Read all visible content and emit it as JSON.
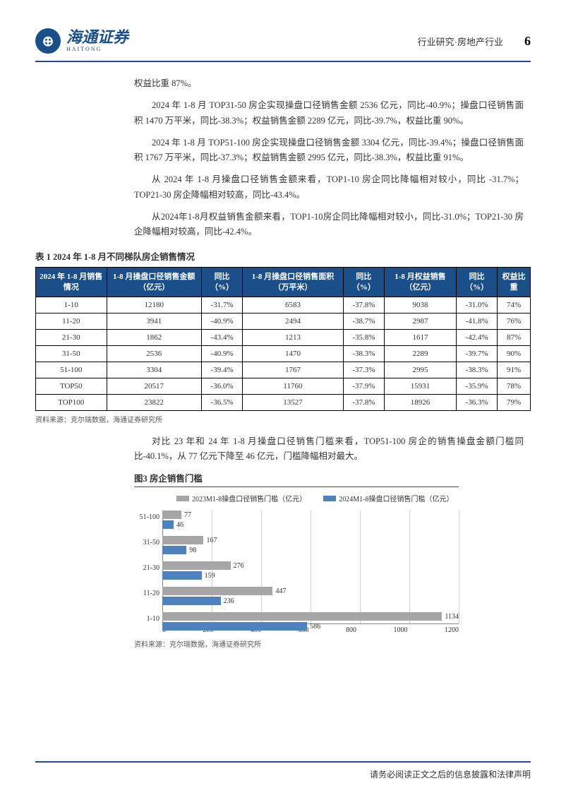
{
  "header": {
    "logo_cn": "海通证券",
    "logo_en": "HAITONG",
    "category": "行业研究·房地产行业",
    "page_number": "6"
  },
  "paragraphs": {
    "p0": "权益比重 87%。",
    "p1": "2024 年 1-8 月 TOP31-50 房企实现操盘口径销售金额 2536 亿元，同比-40.9%；操盘口径销售面积 1470 万平米，同比-38.3%；权益销售金额 2289 亿元，同比-39.7%，权益比重 90%。",
    "p2": "2024 年 1-8 月 TOP51-100 房企实现操盘口径销售金额 3304 亿元，同比-39.4%；操盘口径销售面积 1767 万平米，同比-37.3%；权益销售金额 2995 亿元，同比-38.3%，权益比重 91%。",
    "p3": "从 2024 年 1-8 月操盘口径销售金额来看，TOP1-10 房企同比降幅相对较小，同比 -31.7%；TOP21-30 房企降幅相对较高，同比-43.4%。",
    "p4": "从2024年1-8月权益销售金额来看，TOP1-10房企同比降幅相对较小，同比-31.0%；TOP21-30 房企降幅相对较高，同比-42.4%。",
    "p5": "对比 23 年和 24 年 1-8 月操盘口径销售门槛来看，TOP51-100 房企的销售操盘金额门槛同比-40.1%，从 77 亿元下降至 46 亿元，门槛降幅相对最大。"
  },
  "table": {
    "title": "表 1   2024 年 1-8 月不同梯队房企销售情况",
    "columns": [
      "2024 年 1-8 月销售情况",
      "1-8 月操盘口径销售金额（亿元）",
      "同比（%）",
      "1-8 月操盘口径销售面积（万平米）",
      "同比（%）",
      "1-8 月权益销售（亿元）",
      "同比（%）",
      "权益比重"
    ],
    "rows": [
      [
        "1-10",
        "12180",
        "-31.7%",
        "6583",
        "-37.8%",
        "9038",
        "-31.0%",
        "74%"
      ],
      [
        "11-20",
        "3941",
        "-40.9%",
        "2494",
        "-38.7%",
        "2987",
        "-41.8%",
        "76%"
      ],
      [
        "21-30",
        "1862",
        "-43.4%",
        "1213",
        "-35.8%",
        "1617",
        "-42.4%",
        "87%"
      ],
      [
        "31-50",
        "2536",
        "-40.9%",
        "1470",
        "-38.3%",
        "2289",
        "-39.7%",
        "90%"
      ],
      [
        "51-100",
        "3304",
        "-39.4%",
        "1767",
        "-37.3%",
        "2995",
        "-38.3%",
        "91%"
      ],
      [
        "TOP50",
        "20517",
        "-36.0%",
        "11760",
        "-37.9%",
        "15931",
        "-35.9%",
        "78%"
      ],
      [
        "TOP100",
        "23822",
        "-36.5%",
        "13527",
        "-37.8%",
        "18926",
        "-36.3%",
        "79%"
      ]
    ],
    "source": "资料来源：克尔瑞数据，海通证券研究所",
    "header_bg": "#1a4f8a",
    "header_text_color": "#ffffff",
    "border_color": "#000000"
  },
  "chart": {
    "title": "图3  房企销售门槛",
    "type": "bar-horizontal-grouped",
    "legend": [
      {
        "label": "2023M1-8操盘口径销售门槛（亿元）",
        "color": "#a6a6a6"
      },
      {
        "label": "2024M1-8操盘口径销售门槛（亿元）",
        "color": "#4f81bd"
      }
    ],
    "categories": [
      "51-100",
      "31-50",
      "21-30",
      "11-20",
      "1-10"
    ],
    "series": [
      {
        "name": "2023",
        "color": "#a6a6a6",
        "values": [
          77,
          167,
          276,
          447,
          1134
        ]
      },
      {
        "name": "2024",
        "color": "#4f81bd",
        "values": [
          46,
          98,
          159,
          236,
          586
        ]
      }
    ],
    "x_ticks": [
      0,
      200,
      400,
      600,
      800,
      1000,
      1200
    ],
    "xlim_max": 1200,
    "grid_color": "#d0d0d0",
    "axis_color": "#888888",
    "label_fontsize": 10,
    "source": "资料来源：克尔瑞数据，海通证券研究所"
  },
  "footer": {
    "text": "请务必阅读正文之后的信息披露和法律声明"
  }
}
